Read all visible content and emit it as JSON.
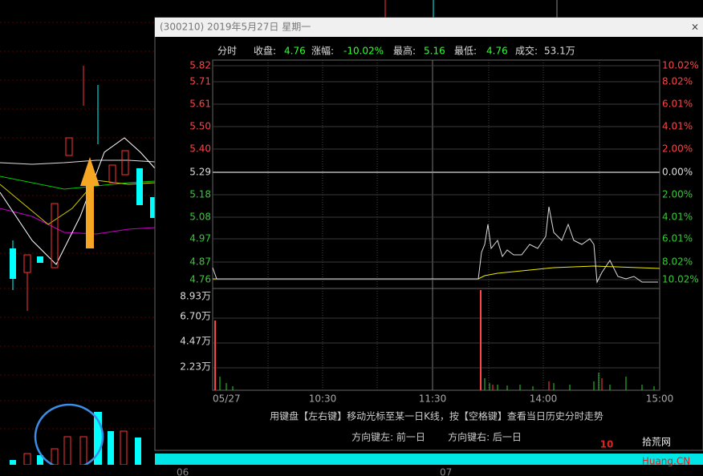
{
  "window": {
    "title": "(300210) 2019年5月27日 星期一",
    "close": "×"
  },
  "header": {
    "mode": "分时",
    "close_label": "收盘:",
    "close": "4.76",
    "change_label": "涨幅:",
    "change": "-10.02%",
    "high_label": "最高:",
    "high": "5.16",
    "low_label": "最低:",
    "low": "4.76",
    "volume_label": "成交:",
    "volume": "53.1万"
  },
  "price_axis": [
    "5.82",
    "5.71",
    "5.61",
    "5.50",
    "5.40",
    "5.29",
    "5.18",
    "5.08",
    "4.97",
    "4.87",
    "4.76"
  ],
  "pct_axis": [
    "10.02%",
    "8.02%",
    "6.01%",
    "4.01%",
    "2.00%",
    "0.00%",
    "2.00%",
    "4.01%",
    "6.01%",
    "8.02%",
    "10.02%"
  ],
  "volume_axis": [
    "8.93万",
    "6.70万",
    "4.47万",
    "2.23万"
  ],
  "time_axis": [
    "05/27",
    "10:30",
    "11:30",
    "14:00",
    "15:00"
  ],
  "footer": {
    "hint1": "用键盘【左右键】移动光标至某一日K线，按【空格键】查看当日历史分时走势",
    "hint2_left": "方向键左: 前一日",
    "hint2_right": "方向键右: 后一日"
  },
  "background": {
    "date_label_1": "06",
    "date_label_2": "07"
  },
  "watermark": {
    "number": "10",
    "name": "拾荒网",
    "site": "Huang.CN"
  }
}
